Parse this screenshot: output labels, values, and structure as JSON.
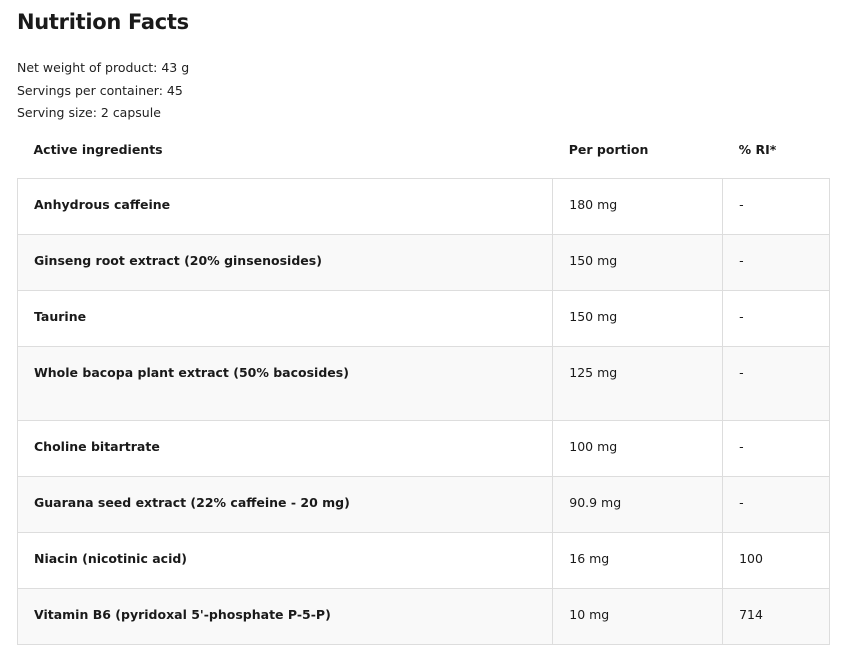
{
  "title": "Nutrition Facts",
  "meta": [
    "Net weight of product: 43 g",
    "Servings per container: 45",
    "Serving size: 2 capsule"
  ],
  "table": {
    "headers": [
      "Active ingredients",
      "Per portion",
      "% RI*"
    ],
    "rows": [
      [
        "Anhydrous caffeine",
        "180 mg",
        "-"
      ],
      [
        "Ginseng root extract (20% ginsenosides)",
        "150 mg",
        "-"
      ],
      [
        "Taurine",
        "150 mg",
        "-"
      ],
      [
        "Whole bacopa plant extract (50% bacosides)",
        "125 mg",
        "-"
      ],
      [
        "Choline bitartrate",
        "100 mg",
        "-"
      ],
      [
        "Guarana seed extract (22% caffeine - 20 mg)",
        "90.9 mg",
        "-"
      ],
      [
        "Niacin (nicotinic acid)",
        "16 mg",
        "100"
      ],
      [
        "Vitamin B6 (pyridoxal 5'-phosphate P-5-P)",
        "10 mg",
        "714"
      ]
    ]
  }
}
